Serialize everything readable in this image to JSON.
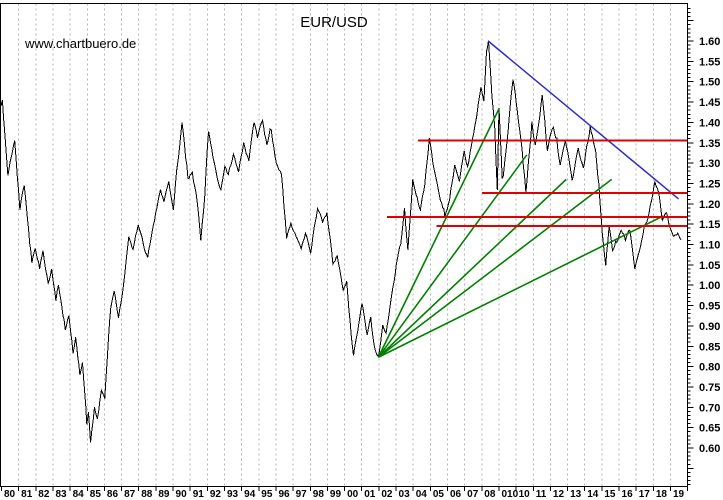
{
  "header": {
    "title": "EUR/USD",
    "watermark": "www.chartbuero.de"
  },
  "chart_data": {
    "type": "line",
    "title": "EUR/USD",
    "legend": "none",
    "grid": "vertical-dashed-per-year",
    "x_axis": {
      "start_year": 1980,
      "end_year": 2020,
      "labels": [
        "80",
        "81",
        "82",
        "83",
        "84",
        "85",
        "86",
        "87",
        "88",
        "89",
        "90",
        "91",
        "92",
        "93",
        "94",
        "95",
        "96",
        "97",
        "98",
        "99",
        "00",
        "01",
        "02",
        "03",
        "04",
        "05",
        "06",
        "07",
        "08",
        "010",
        "10",
        "11",
        "12",
        "13",
        "14",
        "15",
        "16",
        "17",
        "18",
        "19"
      ]
    },
    "y_axis": {
      "position": "right",
      "min": 0.6,
      "max": 1.6,
      "tick_step": 0.05,
      "minor_step": 0.01,
      "labels": [
        "1.60",
        "1.55",
        "1.50",
        "1.45",
        "1.40",
        "1.35",
        "1.30",
        "1.25",
        "1.20",
        "1.15",
        "1.10",
        "1.05",
        "1.00",
        "0.95",
        "0.90",
        "0.85",
        "0.80",
        "0.75",
        "0.70",
        "0.65",
        "0.60"
      ]
    },
    "series": {
      "name": "EUR/USD",
      "style": "jagged-weekly-line",
      "anchors": [
        [
          1980.0,
          1.44
        ],
        [
          1980.08,
          1.455
        ],
        [
          1980.4,
          1.27
        ],
        [
          1980.6,
          1.315
        ],
        [
          1980.8,
          1.355
        ],
        [
          1981.1,
          1.185
        ],
        [
          1981.35,
          1.245
        ],
        [
          1981.8,
          1.055
        ],
        [
          1982.0,
          1.09
        ],
        [
          1982.25,
          1.04
        ],
        [
          1982.45,
          1.085
        ],
        [
          1982.75,
          1.005
        ],
        [
          1982.95,
          1.04
        ],
        [
          1983.2,
          0.962
        ],
        [
          1983.35,
          1.0
        ],
        [
          1983.75,
          0.89
        ],
        [
          1983.95,
          0.925
        ],
        [
          1984.2,
          0.832
        ],
        [
          1984.35,
          0.872
        ],
        [
          1984.6,
          0.78
        ],
        [
          1984.75,
          0.81
        ],
        [
          1985.0,
          0.658
        ],
        [
          1985.1,
          0.688
        ],
        [
          1985.22,
          0.613
        ],
        [
          1985.45,
          0.7
        ],
        [
          1985.62,
          0.672
        ],
        [
          1985.85,
          0.742
        ],
        [
          1986.05,
          0.722
        ],
        [
          1986.4,
          0.945
        ],
        [
          1986.6,
          0.985
        ],
        [
          1986.85,
          0.92
        ],
        [
          1987.15,
          1.005
        ],
        [
          1987.45,
          1.12
        ],
        [
          1987.7,
          1.088
        ],
        [
          1988.0,
          1.148
        ],
        [
          1988.3,
          1.1
        ],
        [
          1988.55,
          1.068
        ],
        [
          1988.95,
          1.158
        ],
        [
          1989.3,
          1.235
        ],
        [
          1989.5,
          1.205
        ],
        [
          1989.78,
          1.255
        ],
        [
          1990.05,
          1.185
        ],
        [
          1990.3,
          1.3
        ],
        [
          1990.55,
          1.4
        ],
        [
          1990.9,
          1.262
        ],
        [
          1991.15,
          1.278
        ],
        [
          1991.45,
          1.2
        ],
        [
          1991.65,
          1.11
        ],
        [
          1991.88,
          1.22
        ],
        [
          1992.1,
          1.378
        ],
        [
          1992.35,
          1.315
        ],
        [
          1992.62,
          1.26
        ],
        [
          1992.82,
          1.235
        ],
        [
          1993.05,
          1.292
        ],
        [
          1993.25,
          1.272
        ],
        [
          1993.55,
          1.322
        ],
        [
          1993.85,
          1.278
        ],
        [
          1994.15,
          1.35
        ],
        [
          1994.45,
          1.305
        ],
        [
          1994.75,
          1.4
        ],
        [
          1994.95,
          1.362
        ],
        [
          1995.25,
          1.405
        ],
        [
          1995.5,
          1.345
        ],
        [
          1995.75,
          1.382
        ],
        [
          1996.05,
          1.3
        ],
        [
          1996.35,
          1.272
        ],
        [
          1996.65,
          1.115
        ],
        [
          1996.9,
          1.152
        ],
        [
          1997.2,
          1.12
        ],
        [
          1997.5,
          1.09
        ],
        [
          1997.75,
          1.128
        ],
        [
          1998.05,
          1.078
        ],
        [
          1998.45,
          1.188
        ],
        [
          1998.75,
          1.155
        ],
        [
          1999.0,
          1.178
        ],
        [
          1999.35,
          1.052
        ],
        [
          1999.6,
          1.072
        ],
        [
          1999.95,
          0.988
        ],
        [
          2000.15,
          1.01
        ],
        [
          2000.55,
          0.827
        ],
        [
          2000.8,
          0.888
        ],
        [
          2001.05,
          0.955
        ],
        [
          2001.35,
          0.878
        ],
        [
          2001.55,
          0.922
        ],
        [
          2001.8,
          0.843
        ],
        [
          2002.0,
          0.825
        ],
        [
          2002.25,
          0.902
        ],
        [
          2002.45,
          0.882
        ],
        [
          2002.78,
          0.978
        ],
        [
          2003.05,
          1.052
        ],
        [
          2003.3,
          1.1
        ],
        [
          2003.52,
          1.19
        ],
        [
          2003.72,
          1.087
        ],
        [
          2004.0,
          1.26
        ],
        [
          2004.2,
          1.222
        ],
        [
          2004.45,
          1.185
        ],
        [
          2004.7,
          1.245
        ],
        [
          2004.97,
          1.362
        ],
        [
          2005.25,
          1.285
        ],
        [
          2005.55,
          1.222
        ],
        [
          2005.88,
          1.168
        ],
        [
          2006.15,
          1.21
        ],
        [
          2006.45,
          1.295
        ],
        [
          2006.72,
          1.255
        ],
        [
          2007.0,
          1.33
        ],
        [
          2007.2,
          1.292
        ],
        [
          2007.5,
          1.362
        ],
        [
          2007.75,
          1.42
        ],
        [
          2007.98,
          1.487
        ],
        [
          2008.15,
          1.452
        ],
        [
          2008.3,
          1.575
        ],
        [
          2008.42,
          1.601
        ],
        [
          2008.62,
          1.465
        ],
        [
          2008.78,
          1.39
        ],
        [
          2008.93,
          1.234
        ],
        [
          2009.03,
          1.435
        ],
        [
          2009.22,
          1.262
        ],
        [
          2009.5,
          1.352
        ],
        [
          2009.85,
          1.505
        ],
        [
          2010.1,
          1.428
        ],
        [
          2010.3,
          1.36
        ],
        [
          2010.6,
          1.228
        ],
        [
          2010.95,
          1.402
        ],
        [
          2011.15,
          1.345
        ],
        [
          2011.55,
          1.467
        ],
        [
          2011.85,
          1.33
        ],
        [
          2012.2,
          1.388
        ],
        [
          2012.6,
          1.295
        ],
        [
          2012.9,
          1.355
        ],
        [
          2013.3,
          1.258
        ],
        [
          2013.65,
          1.337
        ],
        [
          2013.95,
          1.288
        ],
        [
          2014.35,
          1.39
        ],
        [
          2014.6,
          1.34
        ],
        [
          2014.85,
          1.25
        ],
        [
          2015.05,
          1.13
        ],
        [
          2015.25,
          1.048
        ],
        [
          2015.45,
          1.145
        ],
        [
          2015.65,
          1.085
        ],
        [
          2015.9,
          1.105
        ],
        [
          2016.15,
          1.135
        ],
        [
          2016.4,
          1.11
        ],
        [
          2016.65,
          1.135
        ],
        [
          2016.95,
          1.04
        ],
        [
          2017.2,
          1.082
        ],
        [
          2017.5,
          1.145
        ],
        [
          2017.78,
          1.178
        ],
        [
          2018.0,
          1.225
        ],
        [
          2018.12,
          1.253
        ],
        [
          2018.35,
          1.225
        ],
        [
          2018.55,
          1.16
        ],
        [
          2018.8,
          1.178
        ],
        [
          2019.0,
          1.142
        ],
        [
          2019.2,
          1.12
        ],
        [
          2019.45,
          1.128
        ],
        [
          2019.65,
          1.112
        ]
      ]
    },
    "overlays": {
      "fan_lines": {
        "description": "five green fan trendlines from the 2002 low",
        "origin": [
          2002.0,
          0.823
        ],
        "ends": [
          [
            2009.05,
            1.435
          ],
          [
            2010.65,
            1.32
          ],
          [
            2012.95,
            1.26
          ],
          [
            2015.6,
            1.26
          ],
          [
            2018.6,
            1.17
          ]
        ]
      },
      "downtrend_line": {
        "description": "blue resistance line from 2008 top",
        "from": [
          2008.4,
          1.6
        ],
        "to": [
          2019.5,
          1.212
        ]
      },
      "horizontal_lines": [
        {
          "price": 1.355,
          "from_year": 2004.3,
          "to_year": 2020.0
        },
        {
          "price": 1.227,
          "from_year": 2008.05,
          "to_year": 2020.0
        },
        {
          "price": 1.168,
          "from_year": 2002.5,
          "to_year": 2020.0
        },
        {
          "price": 1.145,
          "from_year": 2005.4,
          "to_year": 2020.0
        }
      ]
    },
    "colors": {
      "price": "#000000",
      "fan": "#008000",
      "downtrend": "#2e2ec8",
      "resistance": "#e00000",
      "grid": "#b4b4b4",
      "frame": "#000000",
      "watermark": "#8c8c8c",
      "background": "#ffffff"
    }
  }
}
